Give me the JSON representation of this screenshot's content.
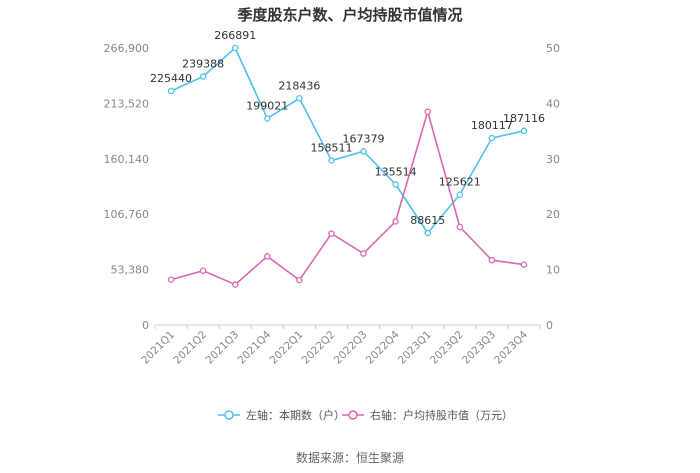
{
  "chart_data": {
    "type": "line",
    "title": "季度股东户数、户均持股市值情况",
    "categories": [
      "2021Q1",
      "2021Q2",
      "2021Q3",
      "2021Q4",
      "2022Q1",
      "2022Q2",
      "2022Q3",
      "2022Q4",
      "2023Q1",
      "2023Q2",
      "2023Q3",
      "2023Q4"
    ],
    "left_axis": {
      "ylim": [
        0,
        266900
      ],
      "ticks": [
        0,
        53380,
        106760,
        160140,
        213520,
        266900
      ],
      "tick_labels": [
        "0",
        "53,380",
        "106,760",
        "160,140",
        "213,520",
        "266,900"
      ]
    },
    "right_axis": {
      "ylim": [
        0,
        50
      ],
      "ticks": [
        0,
        10,
        20,
        30,
        40,
        50
      ],
      "tick_labels": [
        "0",
        "10",
        "20",
        "30",
        "40",
        "50"
      ]
    },
    "series": [
      {
        "name": "左轴：本期数（户）",
        "axis": "left",
        "color": "#4fc1e9",
        "values": [
          225440,
          239388,
          266891,
          199021,
          218436,
          158511,
          167379,
          135514,
          88615,
          125621,
          180117,
          187116
        ],
        "labels": [
          "225440",
          "239388",
          "266891",
          "199021",
          "218436",
          "158511",
          "167379",
          "135514",
          "88615",
          "125621",
          "180117",
          "187116"
        ]
      },
      {
        "name": "右轴：户均持股市值（万元）",
        "axis": "right",
        "color": "#d968b2",
        "values": [
          8.2,
          9.8,
          7.3,
          12.4,
          8.1,
          16.5,
          12.9,
          18.7,
          38.5,
          17.7,
          11.7,
          10.9
        ]
      }
    ],
    "legend_position": "bottom",
    "grid": false
  },
  "source": "数据来源：恒生聚源"
}
